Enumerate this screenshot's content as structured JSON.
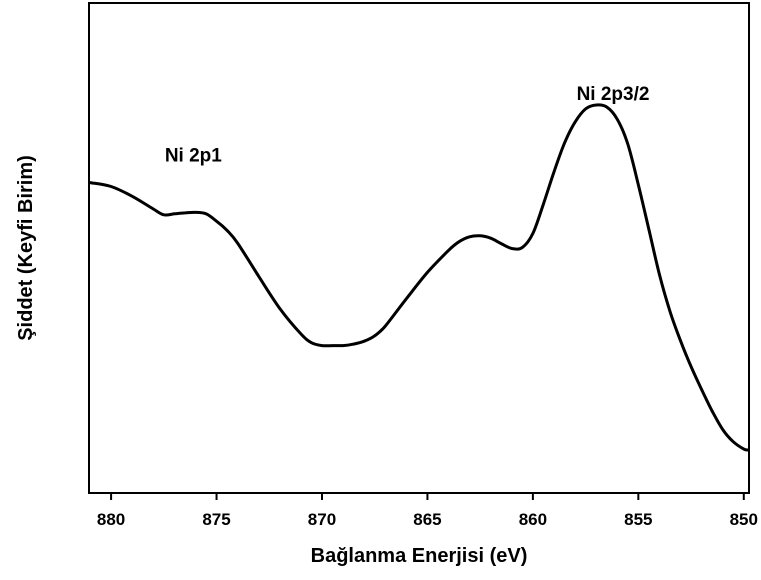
{
  "chart_data": {
    "type": "line",
    "title": "",
    "xlabel": "Bağlanma Enerjisi (eV)",
    "ylabel": "Şiddet (Keyfi Birim)",
    "xlim": [
      881,
      849.8
    ],
    "x_reversed": true,
    "ylim": [
      0,
      100
    ],
    "y_ticks_shown": false,
    "grid": false,
    "legend": "none",
    "line_color": "#000000",
    "xticks": [
      880,
      875,
      870,
      865,
      860,
      855,
      850
    ],
    "xtick_labels": [
      "880",
      "875",
      "870",
      "865",
      "860",
      "855",
      "850"
    ],
    "annotations": [
      {
        "text": "Ni 2p1",
        "x": 876.1,
        "y": 67.7
      },
      {
        "text": "Ni 2p3/2",
        "x": 856.2,
        "y": 80.3
      }
    ],
    "series": [
      {
        "x": [
          881,
          880,
          879,
          878,
          877.5,
          877,
          876.5,
          876,
          875.5,
          875,
          874.5,
          874,
          873,
          872,
          871,
          870.5,
          870,
          869.5,
          869,
          868.5,
          868,
          867.5,
          867,
          866,
          865,
          864,
          863.5,
          863,
          862.5,
          862,
          861.5,
          861,
          860.5,
          860,
          859.5,
          859,
          858.5,
          858,
          857.5,
          857,
          856.5,
          856,
          855.5,
          855,
          854.5,
          854,
          853.5,
          853,
          852.5,
          852,
          851.5,
          851,
          850.5,
          850,
          849.8
        ],
        "y": [
          63.4,
          62.6,
          60.6,
          58.0,
          56.8,
          57.0,
          57.2,
          57.3,
          57.0,
          55.5,
          53.6,
          51.0,
          44.2,
          37.6,
          32.4,
          30.6,
          30.0,
          30.0,
          30.0,
          30.3,
          30.9,
          32.0,
          34.0,
          39.6,
          45.0,
          49.5,
          51.3,
          52.3,
          52.5,
          52.0,
          50.9,
          49.9,
          50.1,
          53.0,
          59.0,
          65.6,
          71.5,
          75.8,
          78.5,
          79.3,
          78.9,
          76.4,
          71.3,
          63.0,
          53.8,
          44.6,
          37.0,
          31.0,
          25.7,
          21.0,
          16.6,
          12.8,
          10.3,
          8.8,
          8.6
        ]
      }
    ]
  }
}
